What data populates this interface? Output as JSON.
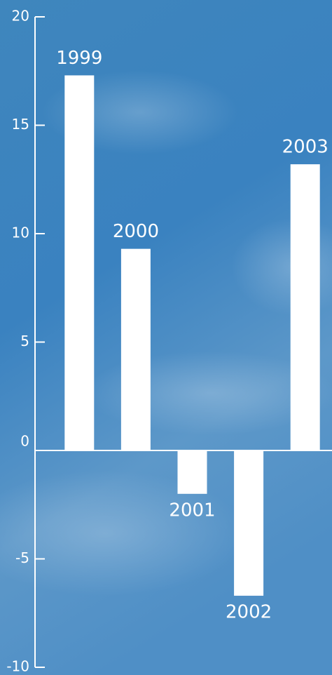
{
  "chart_data": {
    "type": "bar",
    "categories": [
      "1999",
      "2000",
      "2001",
      "2002",
      "2003"
    ],
    "values": [
      17.3,
      9.3,
      -2.0,
      -6.7,
      13.2
    ],
    "color": "#ffffff",
    "ylim": [
      -10,
      20
    ],
    "yticks": [
      -10,
      -5,
      0,
      5,
      10,
      15,
      20
    ]
  }
}
